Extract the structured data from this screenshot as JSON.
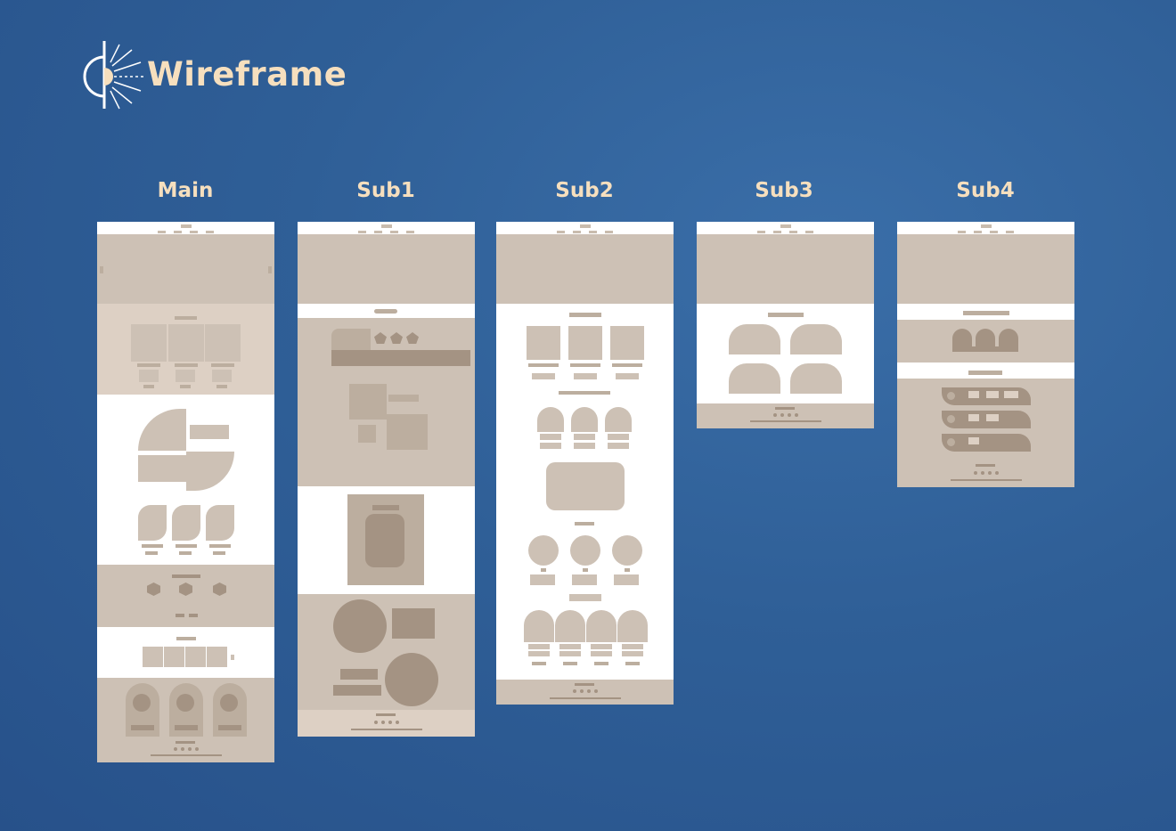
{
  "header": {
    "title": "Wireframe",
    "logo_icon": "sun-half-logo-icon"
  },
  "columns": [
    {
      "id": "main",
      "label": "Main"
    },
    {
      "id": "sub1",
      "label": "Sub1"
    },
    {
      "id": "sub2",
      "label": "Sub2"
    },
    {
      "id": "sub3",
      "label": "Sub3"
    },
    {
      "id": "sub4",
      "label": "Sub4"
    }
  ],
  "colors": {
    "background": "#2f5f97",
    "accent": "#f6dfbe",
    "wire_block": "#cdc1b5",
    "wire_dark": "#a49383"
  }
}
